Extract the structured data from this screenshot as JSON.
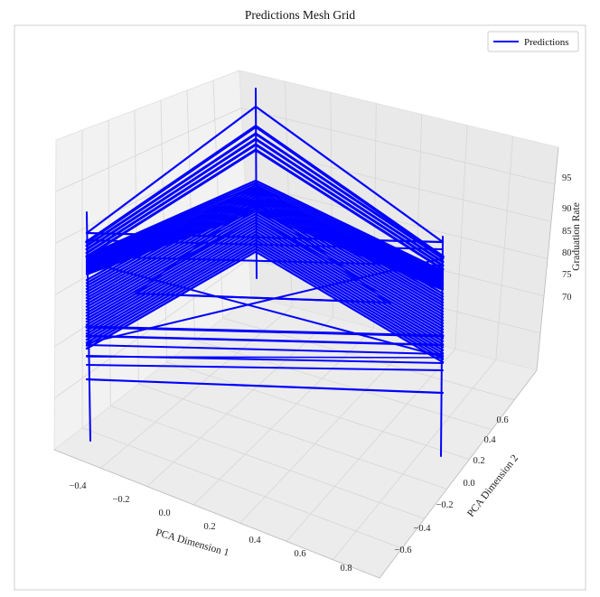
{
  "chart_data": {
    "type": "surface-3d",
    "title": "Predictions Mesh Grid",
    "xlabel": "PCA Dimension 1",
    "ylabel": "PCA Dimension 2",
    "zlabel": "Graduation Rate",
    "x_ticks": [
      "−0.4",
      "−0.2",
      "0.0",
      "0.2",
      "0.4",
      "0.6",
      "0.8"
    ],
    "y_ticks": [
      "−0.6",
      "−0.4",
      "−0.2",
      "0.0",
      "0.2",
      "0.4",
      "0.6"
    ],
    "z_ticks": [
      "70",
      "75",
      "80",
      "85",
      "90",
      "95"
    ],
    "x_range": [
      -0.45,
      0.85
    ],
    "y_range": [
      -0.7,
      0.75
    ],
    "z_range": [
      65,
      98
    ],
    "legend": {
      "entries": [
        "Predictions"
      ],
      "position": "top-right"
    },
    "series": [
      {
        "name": "Predictions",
        "color": "#0000ff",
        "style": "wireframe"
      }
    ],
    "grid": true
  }
}
